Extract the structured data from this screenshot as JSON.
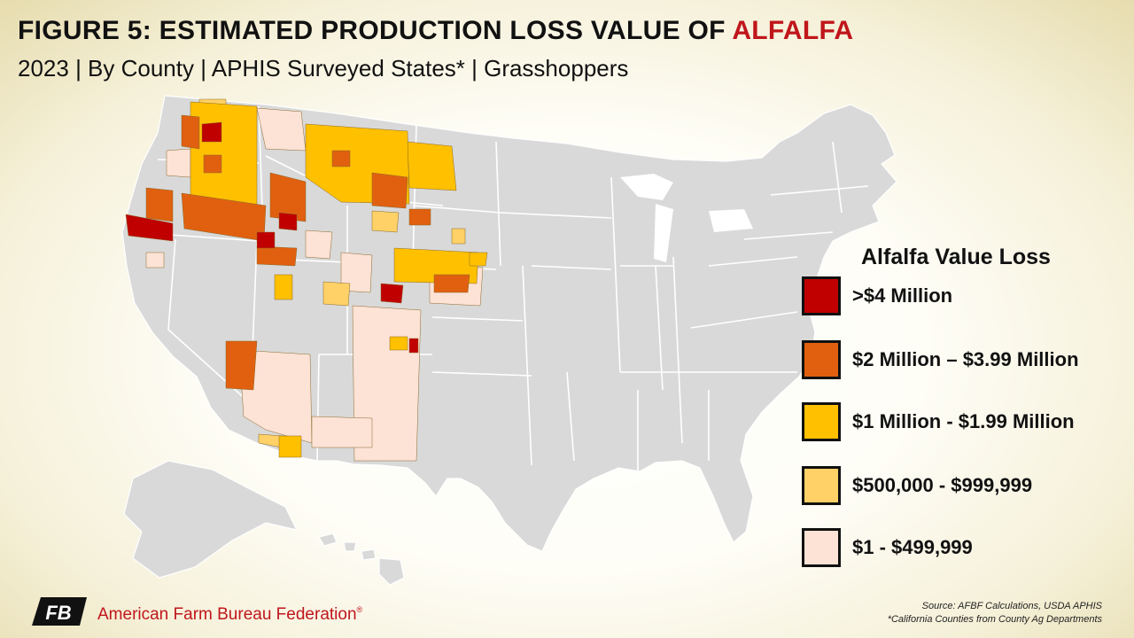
{
  "header": {
    "title_prefix": "FIGURE 5: ESTIMATED PRODUCTION LOSS VALUE OF ",
    "title_highlight": "ALFALFA",
    "subtitle": "2023 | By County | APHIS Surveyed States* | Grasshoppers"
  },
  "map": {
    "region": "Contiguous United States, Alaska, Hawaii",
    "state_fill": "#d9d9d9",
    "state_border": "#ffffff"
  },
  "legend": {
    "title": "Alfalfa Value Loss",
    "items": [
      {
        "label": ">$4 Million",
        "color": "#c00000"
      },
      {
        "label": "$2 Million – $3.99 Million",
        "color": "#e06010"
      },
      {
        "label": "$1 Million - $1.99 Million",
        "color": "#ffc000"
      },
      {
        "label": "$500,000 - $999,999",
        "color": "#ffd166"
      },
      {
        "label": "$1 - $499,999",
        "color": "#fde2d6"
      }
    ]
  },
  "footer": {
    "source_line1": "Source: AFBF Calculations, USDA APHIS",
    "source_line2": "*California Counties from County Ag Departments",
    "organization": "American Farm Bureau Federation",
    "registered_mark": "®",
    "logo_text": "FB"
  },
  "colors": {
    "accent": "#c0161b",
    "gt4m": "#c00000",
    "m2_4": "#e06010",
    "m1_2": "#ffc000",
    "k500_1m": "#ffd166",
    "lt500k": "#fde2d6"
  }
}
